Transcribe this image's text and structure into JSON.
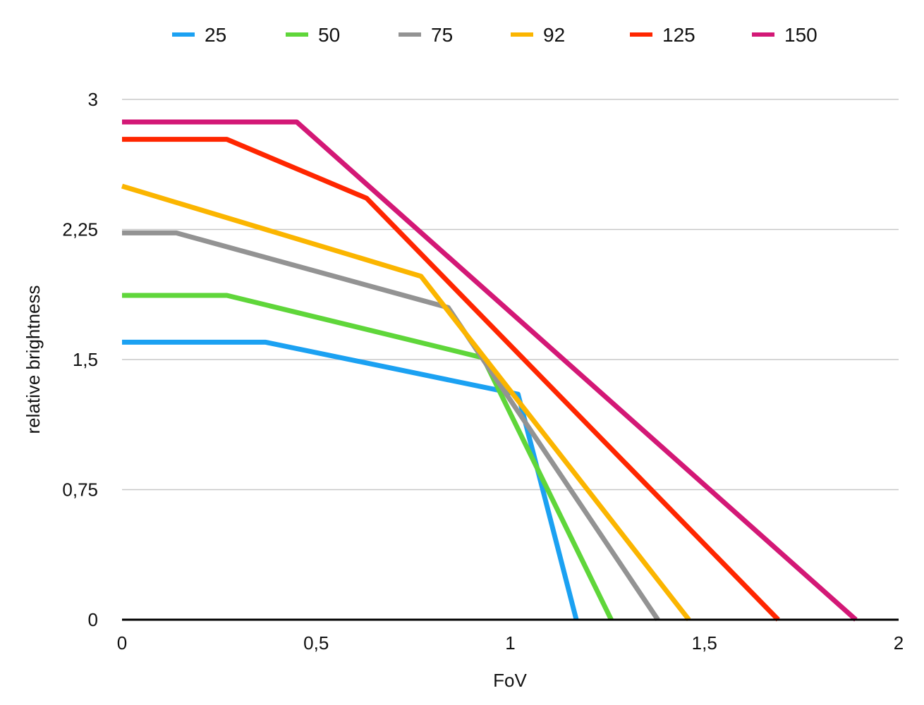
{
  "chart_data": {
    "type": "line",
    "title": "",
    "xlabel": "FoV",
    "ylabel": "relative brightness",
    "xlim": [
      0,
      2
    ],
    "ylim": [
      0,
      3
    ],
    "x_ticks": [
      0,
      0.5,
      1,
      1.5,
      2
    ],
    "x_tick_labels": [
      "0",
      "0,5",
      "1",
      "1,5",
      "2"
    ],
    "y_ticks": [
      0,
      0.75,
      1.5,
      2.25,
      3
    ],
    "y_tick_labels": [
      "0",
      "0,75",
      "1,5",
      "2,25",
      "3"
    ],
    "grid": true,
    "legend_position": "top",
    "series": [
      {
        "name": "25",
        "color": "#1ba1f2",
        "points": [
          [
            0,
            1.6
          ],
          [
            0.37,
            1.6
          ],
          [
            1.02,
            1.3
          ],
          [
            1.17,
            0
          ]
        ]
      },
      {
        "name": "50",
        "color": "#5fd63a",
        "points": [
          [
            0,
            1.87
          ],
          [
            0.27,
            1.87
          ],
          [
            0.93,
            1.51
          ],
          [
            1.26,
            0
          ]
        ]
      },
      {
        "name": "75",
        "color": "#939393",
        "points": [
          [
            0,
            2.23
          ],
          [
            0.14,
            2.23
          ],
          [
            0.84,
            1.8
          ],
          [
            1.38,
            0
          ]
        ]
      },
      {
        "name": "92",
        "color": "#fbb500",
        "points": [
          [
            0,
            2.5
          ],
          [
            0.77,
            1.98
          ],
          [
            1.46,
            0
          ]
        ]
      },
      {
        "name": "125",
        "color": "#ff2600",
        "points": [
          [
            0,
            2.77
          ],
          [
            0.27,
            2.77
          ],
          [
            0.63,
            2.43
          ],
          [
            1.69,
            0
          ]
        ]
      },
      {
        "name": "150",
        "color": "#d31876",
        "points": [
          [
            0,
            2.87
          ],
          [
            0.45,
            2.87
          ],
          [
            1.89,
            0
          ]
        ]
      }
    ]
  }
}
